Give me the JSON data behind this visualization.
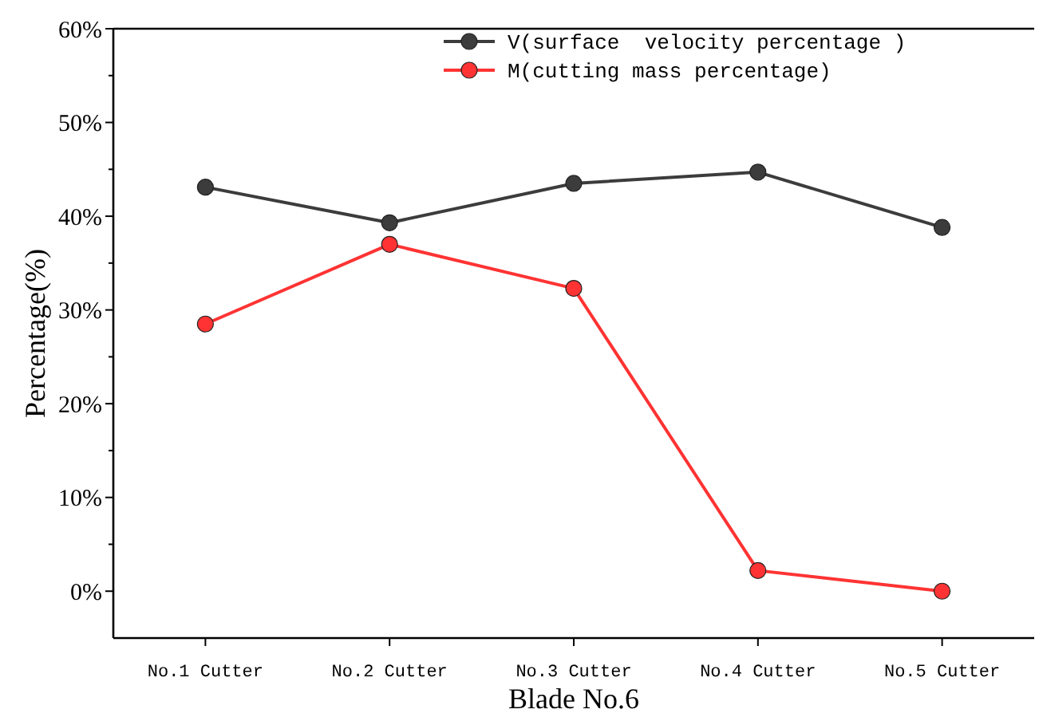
{
  "chart_data": {
    "type": "line",
    "xlabel": "Blade No.6",
    "ylabel": "Percentage(%)",
    "categories": [
      "No.1 Cutter",
      "No.2 Cutter",
      "No.3 Cutter",
      "No.4 Cutter",
      "No.5 Cutter"
    ],
    "series": [
      {
        "name": "V(surface  velocity percentage )",
        "color": "#3c3c3c",
        "values": [
          43.1,
          39.3,
          43.5,
          44.7,
          38.8
        ]
      },
      {
        "name": "M(cutting mass percentage)",
        "color": "#ff3333",
        "values": [
          28.5,
          37.0,
          32.3,
          2.2,
          0.0
        ]
      }
    ],
    "ylim": [
      -5,
      60
    ],
    "yticks": [
      {
        "value": 0,
        "label": "0%"
      },
      {
        "value": 5,
        "label": null
      },
      {
        "value": 10,
        "label": "10%"
      },
      {
        "value": 15,
        "label": null
      },
      {
        "value": 20,
        "label": "20%"
      },
      {
        "value": 25,
        "label": null
      },
      {
        "value": 30,
        "label": "30%"
      },
      {
        "value": 35,
        "label": null
      },
      {
        "value": 40,
        "label": "40%"
      },
      {
        "value": 45,
        "label": null
      },
      {
        "value": 50,
        "label": "50%"
      },
      {
        "value": 55,
        "label": null
      },
      {
        "value": 60,
        "label": "60%"
      }
    ],
    "marker": "circle",
    "line_style": "solid",
    "grid": false,
    "legend": "top right"
  }
}
